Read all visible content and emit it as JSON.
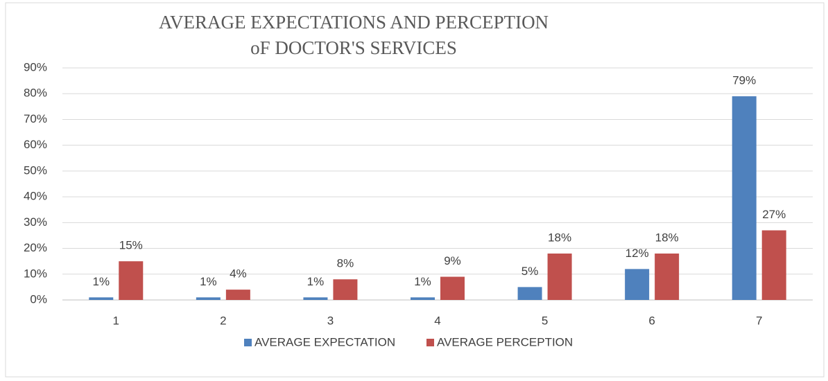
{
  "chart_data": {
    "type": "bar",
    "title": [
      "AVERAGE EXPECTATIONS  AND PERCEPTION",
      "oF DOCTOR'S SERVICES"
    ],
    "categories": [
      "1",
      "2",
      "3",
      "4",
      "5",
      "6",
      "7"
    ],
    "series": [
      {
        "name": "AVERAGE EXPECTATION",
        "color": "#4f81bd",
        "values": [
          1,
          1,
          1,
          1,
          5,
          12,
          79
        ],
        "value_labels": [
          "1%",
          "1%",
          "1%",
          "1%",
          "5%",
          "12%",
          "79%"
        ]
      },
      {
        "name": "AVERAGE PERCEPTION",
        "color": "#c0504d",
        "values": [
          15,
          4,
          8,
          9,
          18,
          18,
          27
        ],
        "value_labels": [
          "15%",
          "4%",
          "8%",
          "9%",
          "18%",
          "18%",
          "27%"
        ]
      }
    ],
    "ylim": [
      0,
      90
    ],
    "yticks": [
      {
        "value": 0,
        "label": "0%"
      },
      {
        "value": 10,
        "label": "10%"
      },
      {
        "value": 20,
        "label": "20%"
      },
      {
        "value": 30,
        "label": "30%"
      },
      {
        "value": 40,
        "label": "40%"
      },
      {
        "value": 50,
        "label": "50%"
      },
      {
        "value": 60,
        "label": "60%"
      },
      {
        "value": 70,
        "label": "70%"
      },
      {
        "value": 80,
        "label": "80%"
      },
      {
        "value": 90,
        "label": "90%"
      }
    ],
    "grid": true,
    "legend": "bottom"
  }
}
